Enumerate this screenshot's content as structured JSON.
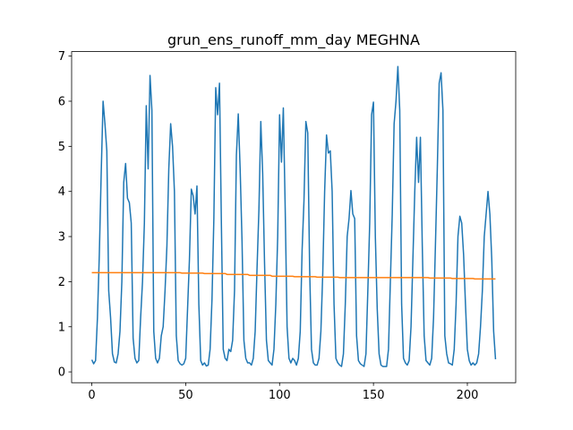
{
  "chart_data": {
    "type": "line",
    "title": "grun_ens_runoff_mm_day MEGHNA",
    "x": [
      0,
      1,
      2,
      3,
      4,
      5,
      6,
      7,
      8,
      9,
      10,
      11,
      12,
      13,
      14,
      15,
      16,
      17,
      18,
      19,
      20,
      21,
      22,
      23,
      24,
      25,
      26,
      27,
      28,
      29,
      30,
      31,
      32,
      33,
      34,
      35,
      36,
      37,
      38,
      39,
      40,
      41,
      42,
      43,
      44,
      45,
      46,
      47,
      48,
      49,
      50,
      51,
      52,
      53,
      54,
      55,
      56,
      57,
      58,
      59,
      60,
      61,
      62,
      63,
      64,
      65,
      66,
      67,
      68,
      69,
      70,
      71,
      72,
      73,
      74,
      75,
      76,
      77,
      78,
      79,
      80,
      81,
      82,
      83,
      84,
      85,
      86,
      87,
      88,
      89,
      90,
      91,
      92,
      93,
      94,
      95,
      96,
      97,
      98,
      99,
      100,
      101,
      102,
      103,
      104,
      105,
      106,
      107,
      108,
      109,
      110,
      111,
      112,
      113,
      114,
      115,
      116,
      117,
      118,
      119,
      120,
      121,
      122,
      123,
      124,
      125,
      126,
      127,
      128,
      129,
      130,
      131,
      132,
      133,
      134,
      135,
      136,
      137,
      138,
      139,
      140,
      141,
      142,
      143,
      144,
      145,
      146,
      147,
      148,
      149,
      150,
      151,
      152,
      153,
      154,
      155,
      156,
      157,
      158,
      159,
      160,
      161,
      162,
      163,
      164,
      165,
      166,
      167,
      168,
      169,
      170,
      171,
      172,
      173,
      174,
      175,
      176,
      177,
      178,
      179,
      180,
      181,
      182,
      183,
      184,
      185,
      186,
      187,
      188,
      189,
      190,
      191,
      192,
      193,
      194,
      195,
      196,
      197,
      198,
      199,
      200,
      201,
      202,
      203,
      204,
      205,
      206,
      207,
      208,
      209,
      210,
      211,
      212,
      213,
      214,
      215
    ],
    "series": [
      {
        "color": "#1f77b4",
        "values": [
          0.27,
          0.18,
          0.25,
          1.2,
          2.6,
          4.4,
          6.0,
          5.5,
          4.9,
          1.8,
          1.2,
          0.4,
          0.22,
          0.2,
          0.4,
          0.9,
          2.0,
          4.2,
          4.62,
          3.85,
          3.75,
          3.3,
          0.75,
          0.3,
          0.2,
          0.25,
          1.2,
          2.0,
          3.3,
          5.9,
          4.5,
          6.57,
          5.8,
          0.9,
          0.3,
          0.2,
          0.3,
          0.8,
          1.0,
          1.8,
          2.8,
          4.5,
          5.5,
          5.0,
          4.0,
          0.8,
          0.25,
          0.18,
          0.15,
          0.18,
          0.3,
          1.4,
          2.5,
          4.05,
          3.9,
          3.5,
          4.12,
          1.5,
          0.25,
          0.15,
          0.2,
          0.13,
          0.15,
          0.5,
          1.6,
          3.4,
          6.3,
          5.7,
          6.4,
          3.3,
          0.5,
          0.3,
          0.25,
          0.5,
          0.45,
          0.7,
          1.8,
          4.8,
          5.72,
          4.5,
          2.9,
          0.7,
          0.3,
          0.2,
          0.2,
          0.15,
          0.3,
          0.9,
          2.3,
          3.6,
          5.55,
          4.4,
          2.4,
          0.7,
          0.25,
          0.2,
          0.15,
          0.5,
          1.5,
          3.0,
          5.7,
          4.65,
          5.85,
          3.6,
          1.0,
          0.3,
          0.2,
          0.3,
          0.25,
          0.15,
          0.3,
          0.9,
          2.7,
          3.8,
          5.55,
          5.3,
          2.3,
          0.5,
          0.2,
          0.15,
          0.15,
          0.3,
          0.9,
          2.2,
          4.0,
          5.25,
          4.85,
          4.9,
          4.0,
          1.5,
          0.3,
          0.2,
          0.15,
          0.12,
          0.4,
          1.5,
          3.0,
          3.4,
          4.02,
          3.5,
          3.4,
          0.8,
          0.25,
          0.18,
          0.15,
          0.12,
          0.4,
          1.8,
          3.3,
          5.7,
          5.98,
          3.0,
          1.4,
          0.4,
          0.15,
          0.12,
          0.12,
          0.12,
          0.5,
          2.0,
          3.5,
          5.5,
          6.0,
          6.77,
          5.8,
          1.5,
          0.3,
          0.2,
          0.15,
          0.25,
          1.0,
          2.5,
          4.0,
          5.2,
          4.2,
          5.2,
          2.8,
          0.8,
          0.25,
          0.2,
          0.15,
          0.3,
          1.2,
          2.8,
          4.5,
          6.4,
          6.63,
          5.8,
          0.8,
          0.4,
          0.2,
          0.18,
          0.15,
          0.5,
          1.5,
          3.0,
          3.45,
          3.3,
          2.6,
          1.5,
          0.5,
          0.25,
          0.15,
          0.2,
          0.15,
          0.2,
          0.4,
          1.0,
          1.8,
          3.0,
          3.5,
          4.0,
          3.5,
          2.5,
          0.9,
          0.28
        ]
      },
      {
        "color": "#ff7f0e",
        "values": [
          2.2,
          2.2,
          2.2,
          2.2,
          2.2,
          2.2,
          2.2,
          2.2,
          2.2,
          2.2,
          2.2,
          2.2,
          2.2,
          2.2,
          2.2,
          2.2,
          2.2,
          2.2,
          2.2,
          2.2,
          2.2,
          2.2,
          2.2,
          2.2,
          2.2,
          2.2,
          2.2,
          2.2,
          2.2,
          2.2,
          2.2,
          2.2,
          2.2,
          2.2,
          2.2,
          2.2,
          2.2,
          2.2,
          2.2,
          2.2,
          2.2,
          2.2,
          2.2,
          2.2,
          2.2,
          2.2,
          2.2,
          2.2,
          2.19,
          2.19,
          2.19,
          2.19,
          2.19,
          2.19,
          2.19,
          2.19,
          2.19,
          2.19,
          2.19,
          2.19,
          2.18,
          2.18,
          2.18,
          2.18,
          2.18,
          2.18,
          2.18,
          2.18,
          2.18,
          2.18,
          2.18,
          2.18,
          2.16,
          2.16,
          2.16,
          2.16,
          2.16,
          2.16,
          2.16,
          2.16,
          2.16,
          2.16,
          2.16,
          2.16,
          2.14,
          2.14,
          2.14,
          2.14,
          2.14,
          2.14,
          2.14,
          2.14,
          2.14,
          2.14,
          2.14,
          2.14,
          2.12,
          2.12,
          2.12,
          2.12,
          2.12,
          2.12,
          2.12,
          2.12,
          2.12,
          2.12,
          2.12,
          2.12,
          2.11,
          2.11,
          2.11,
          2.11,
          2.11,
          2.11,
          2.11,
          2.11,
          2.11,
          2.11,
          2.11,
          2.11,
          2.1,
          2.1,
          2.1,
          2.1,
          2.1,
          2.1,
          2.1,
          2.1,
          2.1,
          2.1,
          2.1,
          2.1,
          2.09,
          2.09,
          2.09,
          2.09,
          2.09,
          2.09,
          2.09,
          2.09,
          2.09,
          2.09,
          2.09,
          2.09,
          2.09,
          2.09,
          2.09,
          2.09,
          2.09,
          2.09,
          2.09,
          2.09,
          2.09,
          2.09,
          2.09,
          2.09,
          2.09,
          2.09,
          2.09,
          2.09,
          2.09,
          2.09,
          2.09,
          2.09,
          2.09,
          2.09,
          2.09,
          2.09,
          2.09,
          2.09,
          2.09,
          2.09,
          2.09,
          2.09,
          2.09,
          2.09,
          2.09,
          2.09,
          2.09,
          2.09,
          2.08,
          2.08,
          2.08,
          2.08,
          2.08,
          2.08,
          2.08,
          2.08,
          2.08,
          2.08,
          2.08,
          2.08,
          2.07,
          2.07,
          2.07,
          2.07,
          2.07,
          2.07,
          2.07,
          2.07,
          2.07,
          2.07,
          2.07,
          2.07,
          2.06,
          2.06,
          2.06,
          2.06,
          2.06,
          2.06,
          2.06,
          2.06,
          2.06,
          2.06,
          2.06,
          2.06
        ]
      }
    ],
    "xlim": [
      -10.75,
      225.75
    ],
    "xticks": [
      0,
      50,
      100,
      150,
      200
    ],
    "ylim": [
      -0.24,
      7.1
    ],
    "yticks": [
      0,
      1,
      2,
      3,
      4,
      5,
      6,
      7
    ]
  }
}
